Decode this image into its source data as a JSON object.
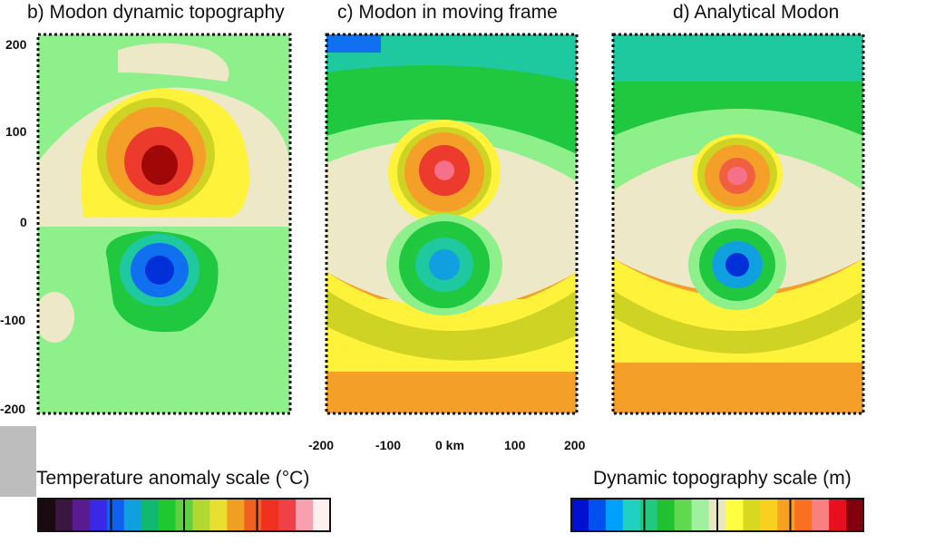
{
  "chart_data": [
    {
      "type": "heatmap",
      "title": "b) Modon dynamic topography",
      "xlim": [
        -200,
        200
      ],
      "ylim": [
        -200,
        200
      ],
      "y_ticks": [
        "200",
        "100",
        "0",
        "-100",
        "-200"
      ],
      "features": [
        {
          "kind": "high",
          "x": 0,
          "y": 60
        },
        {
          "kind": "low",
          "x": 0,
          "y": -45
        }
      ]
    },
    {
      "type": "heatmap",
      "title": "c) Modon in moving frame",
      "xlim": [
        -200,
        200
      ],
      "ylim": [
        -200,
        200
      ],
      "x_ticks": [
        "-200",
        "-100",
        "0 km",
        "100",
        "200"
      ],
      "features": [
        {
          "kind": "high",
          "x": 0,
          "y": 55
        },
        {
          "kind": "low",
          "x": 0,
          "y": -40
        }
      ]
    },
    {
      "type": "heatmap",
      "title": "d) Analytical Modon",
      "xlim": [
        -200,
        200
      ],
      "ylim": [
        -200,
        200
      ],
      "features": [
        {
          "kind": "high",
          "x": 0,
          "y": 50
        },
        {
          "kind": "low",
          "x": 0,
          "y": -45
        }
      ]
    }
  ],
  "scales": {
    "temperature": {
      "title": "Temperature anomaly scale (°C)",
      "colors": [
        "#1a0a12",
        "#3a1640",
        "#5a1a90",
        "#3a28e6",
        "#1060f0",
        "#10a0e0",
        "#10b870",
        "#20c830",
        "#60d040",
        "#b0d830",
        "#e8e030",
        "#f0a020",
        "#f06020",
        "#f03020",
        "#f04048",
        "#f8a0b0",
        "#fff0f0"
      ]
    },
    "topography": {
      "title": "Dynamic topography scale (m)",
      "colors": [
        "#0010d0",
        "#0050f0",
        "#00a0ff",
        "#20d0c0",
        "#20c880",
        "#20c030",
        "#60d850",
        "#a0f0a0",
        "#e8e8c0",
        "#ffff40",
        "#d8d820",
        "#f8d020",
        "#f8a020",
        "#f87020",
        "#f88080",
        "#e81020",
        "#800010"
      ]
    }
  },
  "colors": {
    "background": "#8ef08a",
    "cream": "#ece8c8",
    "yellow": "#fff23a",
    "olive": "#cfd424",
    "orange": "#f4a028",
    "red": "#ec3a2c",
    "dark_red": "#a00808",
    "pink": "#f7708a",
    "teal": "#1fc9a0",
    "green": "#20c840",
    "blue": "#1070f0",
    "deep_blue": "#0030d8"
  }
}
